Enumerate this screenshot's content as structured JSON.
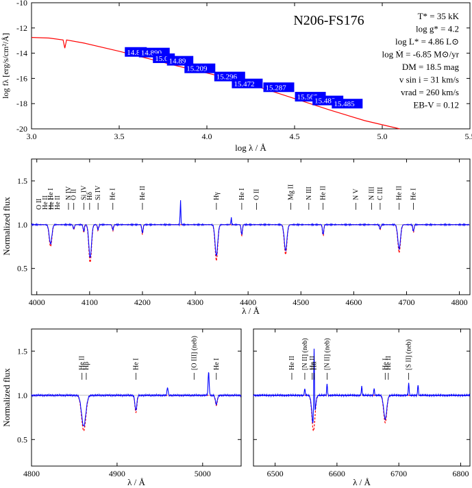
{
  "chart_data": [
    {
      "type": "line",
      "title": "N206-FS176",
      "xlabel": "log λ / Å",
      "ylabel": "log fλ [erg/s/cm²/Å]",
      "xlim": [
        3.0,
        5.5
      ],
      "ylim": [
        -20,
        -10
      ],
      "x_ticks": [
        "3.0",
        "3.5",
        "4.0",
        "4.5",
        "5.0",
        "5.5"
      ],
      "y_ticks": [
        "-10",
        "-12",
        "-14",
        "-16",
        "-18",
        "-20"
      ],
      "parameters": [
        "T* = 35 kK",
        "log g* = 4.2",
        "log L* = 4.86 L⊙",
        "log Ṁ = -6.85 M⊙/yr",
        "DM = 18.5 mag",
        "v sin i = 31 km/s",
        "vrad = 260 km/s",
        "EB-V = 0.12"
      ],
      "series": [
        {
          "color": "#ff0000",
          "x": [
            3.0,
            3.1,
            3.18,
            3.19,
            3.2,
            3.3,
            3.5,
            3.7,
            3.9,
            4.1,
            4.3,
            4.5,
            4.7,
            4.9,
            5.1
          ],
          "y": [
            -12.75,
            -12.8,
            -12.95,
            -13.6,
            -12.95,
            -13.2,
            -13.85,
            -14.55,
            -15.25,
            -15.9,
            -16.7,
            -17.6,
            -18.5,
            -19.35,
            -20.2
          ]
        }
      ],
      "photometry_labels": [
        {
          "x": 3.54,
          "y": -13.9,
          "label": "14.8"
        },
        {
          "x": 3.62,
          "y": -13.95,
          "label": "14.890"
        },
        {
          "x": 3.7,
          "y": -14.4,
          "label": "15.0"
        },
        {
          "x": 3.78,
          "y": -14.6,
          "label": "14.89"
        },
        {
          "x": 3.88,
          "y": -15.2,
          "label": "15.209"
        },
        {
          "x": 4.05,
          "y": -15.85,
          "label": "15.296"
        },
        {
          "x": 4.15,
          "y": -16.4,
          "label": "15.472"
        },
        {
          "x": 4.33,
          "y": -16.7,
          "label": "15.287"
        },
        {
          "x": 4.51,
          "y": -17.45,
          "label": "15.565"
        },
        {
          "x": 4.61,
          "y": -17.75,
          "label": "15.485"
        },
        {
          "x": 4.72,
          "y": -18.0,
          "label": "15.485"
        }
      ],
      "photometry_color": "#0000ff"
    },
    {
      "type": "line",
      "xlabel": "λ / Å",
      "ylabel": "Normalized flux",
      "xlim": [
        3990,
        4820
      ],
      "ylim": [
        0.2,
        1.75
      ],
      "x_ticks": [
        "4000",
        "4100",
        "4200",
        "4300",
        "4400",
        "4500",
        "4600",
        "4700",
        "4800"
      ],
      "y_ticks": [
        "0.5",
        "1.0",
        "1.5"
      ],
      "continuum": 1.0,
      "line_labels": [
        {
          "x": 4026,
          "label": "He I"
        },
        {
          "x": 4060,
          "label": "N IV"
        },
        {
          "x": 4070,
          "label": "O II"
        },
        {
          "x": 4089,
          "label": "Si IV"
        },
        {
          "x": 4100,
          "label": "Hδ"
        },
        {
          "x": 4116,
          "label": "Si IV"
        },
        {
          "x": 4144,
          "label": "He I"
        },
        {
          "x": 4200,
          "label": "He II"
        },
        {
          "x": 4340,
          "label": "Hγ"
        },
        {
          "x": 4388,
          "label": "He I"
        },
        {
          "x": 4416,
          "label": "O II"
        },
        {
          "x": 4481,
          "label": "Mg II"
        },
        {
          "x": 4515,
          "label": "N III"
        },
        {
          "x": 4542,
          "label": "He II"
        },
        {
          "x": 4604,
          "label": "N V"
        },
        {
          "x": 4634,
          "label": "N III"
        },
        {
          "x": 4650,
          "label": "C III"
        },
        {
          "x": 4686,
          "label": "He II"
        },
        {
          "x": 4713,
          "label": "He I"
        }
      ],
      "group_labels": [
        "O II",
        "He II",
        "He I",
        "He II"
      ],
      "lines": [
        {
          "x": 4026,
          "depth": 0.22
        },
        {
          "x": 4070,
          "depth": 0.05
        },
        {
          "x": 4089,
          "depth": 0.08
        },
        {
          "x": 4101,
          "depth": 0.38
        },
        {
          "x": 4116,
          "depth": 0.06
        },
        {
          "x": 4144,
          "depth": 0.06
        },
        {
          "x": 4200,
          "depth": 0.1
        },
        {
          "x": 4340,
          "depth": 0.36
        },
        {
          "x": 4388,
          "depth": 0.12
        },
        {
          "x": 4471,
          "depth": 0.3
        },
        {
          "x": 4542,
          "depth": 0.12
        },
        {
          "x": 4650,
          "depth": 0.05
        },
        {
          "x": 4686,
          "depth": 0.28
        },
        {
          "x": 4713,
          "depth": 0.08
        }
      ],
      "emission": [
        {
          "x": 4272,
          "height": 0.3
        },
        {
          "x": 4368,
          "height": 0.08
        }
      ],
      "observed_color": "#0000ff",
      "model_color": "#ff0000"
    },
    {
      "type": "line",
      "xlabel": "λ / Å",
      "ylabel": "Normalized flux",
      "xlim": [
        4800,
        5045
      ],
      "ylim": [
        0.2,
        1.75
      ],
      "x_ticks": [
        "4800",
        "4900",
        "5000"
      ],
      "y_ticks": [
        "0.5",
        "1.0",
        "1.5"
      ],
      "line_labels": [
        {
          "x": 4859,
          "label": "He II"
        },
        {
          "x": 4864,
          "label": "Hβ"
        },
        {
          "x": 4922,
          "label": "He I"
        },
        {
          "x": 4990,
          "label": "[O III] (neb)"
        },
        {
          "x": 5016,
          "label": "He I"
        }
      ],
      "lines": [
        {
          "x": 4861,
          "depth": 0.35
        },
        {
          "x": 4922,
          "depth": 0.17
        },
        {
          "x": 5016,
          "depth": 0.1
        }
      ],
      "emission": [
        {
          "x": 4959,
          "height": 0.09
        },
        {
          "x": 5007,
          "height": 0.26
        }
      ]
    },
    {
      "type": "line",
      "xlabel": "λ / Å",
      "ylabel": "",
      "xlim": [
        6465,
        6815
      ],
      "ylim": [
        0.2,
        1.75
      ],
      "x_ticks": [
        "6500",
        "6600",
        "6700",
        "6800"
      ],
      "y_ticks": [
        "0.5",
        "1.0",
        "1.5"
      ],
      "line_labels": [
        {
          "x": 6527,
          "label": "He II"
        },
        {
          "x": 6548,
          "label": "[N II] (neb)"
        },
        {
          "x": 6560,
          "label": "He II"
        },
        {
          "x": 6563,
          "label": "Hα"
        },
        {
          "x": 6584,
          "label": "[N II] (neb)"
        },
        {
          "x": 6678,
          "label": "He I"
        },
        {
          "x": 6683,
          "label": "He II"
        },
        {
          "x": 6716,
          "label": "[S II] (neb)"
        }
      ],
      "lines": [
        {
          "x": 6562,
          "depth": 0.35
        },
        {
          "x": 6678,
          "depth": 0.27
        }
      ],
      "emission": [
        {
          "x": 6548,
          "height": 0.08
        },
        {
          "x": 6563,
          "height": 0.85
        },
        {
          "x": 6584,
          "height": 0.13
        },
        {
          "x": 6640,
          "height": 0.1
        },
        {
          "x": 6660,
          "height": 0.08
        },
        {
          "x": 6716,
          "height": 0.14
        },
        {
          "x": 6731,
          "height": 0.12
        }
      ]
    }
  ]
}
